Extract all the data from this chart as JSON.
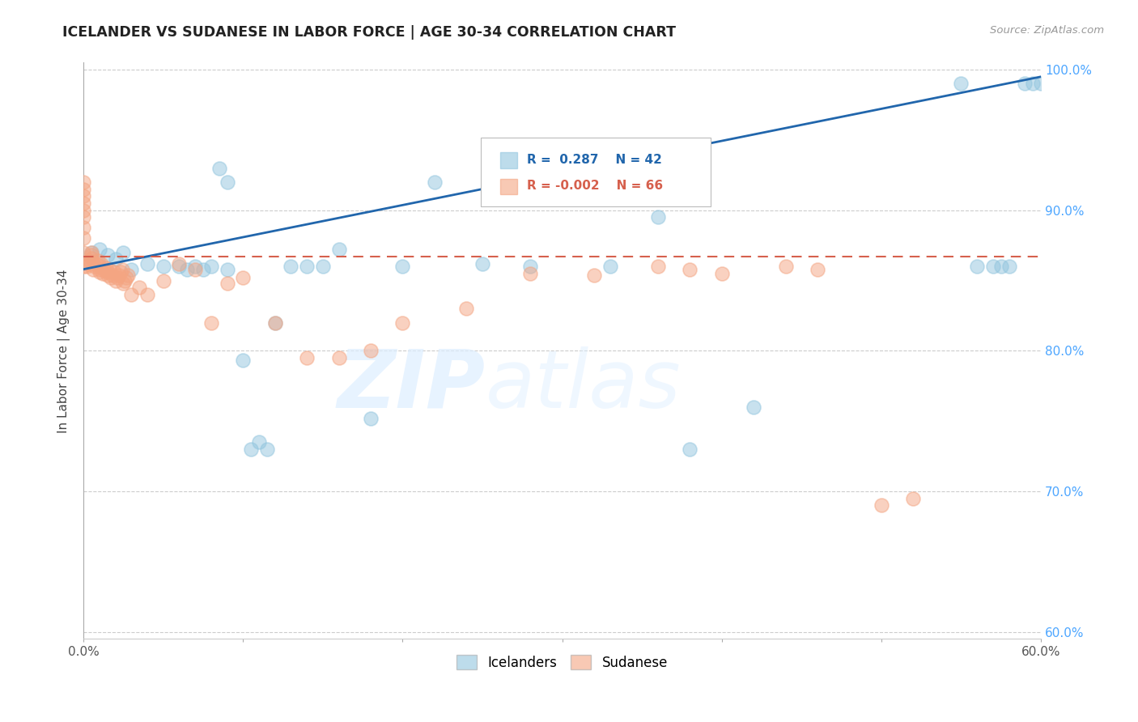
{
  "title": "ICELANDER VS SUDANESE IN LABOR FORCE | AGE 30-34 CORRELATION CHART",
  "source": "Source: ZipAtlas.com",
  "ylabel": "In Labor Force | Age 30-34",
  "xlim": [
    0.0,
    0.6
  ],
  "ylim": [
    0.595,
    1.005
  ],
  "xticks": [
    0.0,
    0.1,
    0.2,
    0.3,
    0.4,
    0.5,
    0.6
  ],
  "xticklabels": [
    "0.0%",
    "",
    "",
    "",
    "",
    "",
    "60.0%"
  ],
  "yticks": [
    0.6,
    0.7,
    0.8,
    0.9,
    1.0
  ],
  "legend_blue_r": "0.287",
  "legend_blue_n": "42",
  "legend_pink_r": "-0.002",
  "legend_pink_n": "66",
  "blue_color": "#92c5de",
  "pink_color": "#f4a582",
  "trend_blue": "#2166ac",
  "trend_pink": "#d6604d",
  "blue_scatter_x": [
    0.005,
    0.01,
    0.015,
    0.02,
    0.025,
    0.03,
    0.04,
    0.05,
    0.06,
    0.065,
    0.07,
    0.075,
    0.08,
    0.085,
    0.09,
    0.09,
    0.1,
    0.105,
    0.11,
    0.115,
    0.12,
    0.13,
    0.14,
    0.15,
    0.16,
    0.18,
    0.2,
    0.22,
    0.25,
    0.28,
    0.33,
    0.36,
    0.38,
    0.42,
    0.55,
    0.56,
    0.57,
    0.575,
    0.58,
    0.59,
    0.595,
    0.6
  ],
  "blue_scatter_y": [
    0.87,
    0.872,
    0.868,
    0.865,
    0.87,
    0.858,
    0.862,
    0.86,
    0.86,
    0.858,
    0.86,
    0.858,
    0.86,
    0.93,
    0.92,
    0.858,
    0.793,
    0.73,
    0.735,
    0.73,
    0.82,
    0.86,
    0.86,
    0.86,
    0.872,
    0.752,
    0.86,
    0.92,
    0.862,
    0.86,
    0.86,
    0.895,
    0.73,
    0.76,
    0.99,
    0.86,
    0.86,
    0.86,
    0.86,
    0.99,
    0.99,
    0.99
  ],
  "pink_scatter_x": [
    0.0,
    0.0,
    0.0,
    0.0,
    0.0,
    0.0,
    0.0,
    0.0,
    0.0,
    0.0,
    0.002,
    0.003,
    0.004,
    0.005,
    0.005,
    0.005,
    0.006,
    0.007,
    0.008,
    0.009,
    0.01,
    0.01,
    0.01,
    0.011,
    0.012,
    0.013,
    0.014,
    0.015,
    0.015,
    0.016,
    0.017,
    0.018,
    0.019,
    0.02,
    0.021,
    0.022,
    0.023,
    0.024,
    0.025,
    0.026,
    0.027,
    0.028,
    0.03,
    0.035,
    0.04,
    0.05,
    0.06,
    0.07,
    0.08,
    0.09,
    0.1,
    0.12,
    0.14,
    0.16,
    0.18,
    0.2,
    0.24,
    0.28,
    0.32,
    0.36,
    0.38,
    0.4,
    0.44,
    0.46,
    0.5,
    0.52
  ],
  "pink_scatter_y": [
    0.86,
    0.87,
    0.88,
    0.888,
    0.895,
    0.9,
    0.905,
    0.91,
    0.915,
    0.92,
    0.86,
    0.862,
    0.864,
    0.866,
    0.868,
    0.87,
    0.858,
    0.86,
    0.862,
    0.864,
    0.856,
    0.858,
    0.86,
    0.862,
    0.855,
    0.857,
    0.859,
    0.854,
    0.856,
    0.858,
    0.852,
    0.854,
    0.856,
    0.85,
    0.852,
    0.854,
    0.856,
    0.858,
    0.848,
    0.85,
    0.852,
    0.854,
    0.84,
    0.845,
    0.84,
    0.85,
    0.862,
    0.858,
    0.82,
    0.848,
    0.852,
    0.82,
    0.795,
    0.795,
    0.8,
    0.82,
    0.83,
    0.855,
    0.854,
    0.86,
    0.858,
    0.855,
    0.86,
    0.858,
    0.69,
    0.695
  ],
  "trend_blue_x0": 0.0,
  "trend_blue_y0": 0.858,
  "trend_blue_x1": 0.6,
  "trend_blue_y1": 0.995,
  "trend_pink_x0": 0.0,
  "trend_pink_y0": 0.867,
  "trend_pink_x1": 0.6,
  "trend_pink_y1": 0.867
}
